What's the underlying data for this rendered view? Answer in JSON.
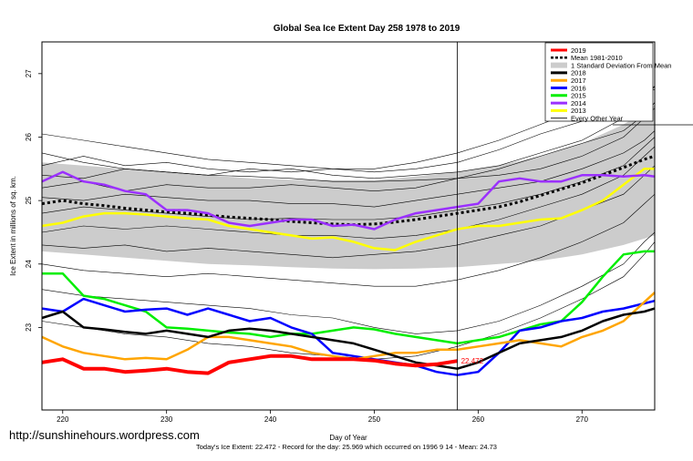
{
  "watermark": "http://sunshinehours.wordpress.com",
  "stats_line": "Today's Ice Extent: 22.472  - Record for the day: 25.969 which occurred on 1996 9 14  - Mean: 24.73",
  "chart_data": {
    "type": "line",
    "title": "Global Sea Ice Extent Day 258 1978 to 2019",
    "xlabel": "Day of Year",
    "ylabel": "Ice Extent in millions of sq. km.",
    "xlim": [
      218,
      277
    ],
    "ylim": [
      21.7,
      27.5
    ],
    "x_ticks": [
      220,
      230,
      240,
      250,
      260,
      270
    ],
    "y_ticks": [
      23,
      24,
      25,
      26,
      27
    ],
    "x_tick_labels": [
      "220",
      "230",
      "240",
      "250",
      "260",
      "270"
    ],
    "y_tick_labels": [
      "23",
      "24",
      "25",
      "26",
      "27"
    ],
    "current_day": 258,
    "current_value_label": "22.472",
    "grid": false,
    "legend_position": "top-right",
    "colors": {
      "2019": "#ff0000",
      "mean": "#000000",
      "band": "#cccccc",
      "2018": "#000000",
      "2017": "#ffa500",
      "2016": "#0000ff",
      "2015": "#00ee00",
      "2014": "#9b30ff",
      "2013": "#ffff00",
      "other": "#000000"
    },
    "legend": [
      {
        "label": "2019",
        "key": "2019",
        "style": "thick"
      },
      {
        "label": "Mean 1981-2010",
        "key": "mean",
        "style": "dotted"
      },
      {
        "label": "1 Standard Deviation From Mean",
        "key": "band",
        "style": "box"
      },
      {
        "label": "2018",
        "key": "2018",
        "style": "thick"
      },
      {
        "label": "2017",
        "key": "2017",
        "style": "thick"
      },
      {
        "label": "2016",
        "key": "2016",
        "style": "thick"
      },
      {
        "label": "2015",
        "key": "2015",
        "style": "thick"
      },
      {
        "label": "2014",
        "key": "2014",
        "style": "thick"
      },
      {
        "label": "2013",
        "key": "2013",
        "style": "thick"
      },
      {
        "label": "Every Other Year",
        "key": "other",
        "style": "thin"
      }
    ],
    "std_band": {
      "x": [
        218,
        222,
        226,
        230,
        234,
        238,
        242,
        246,
        250,
        254,
        258,
        262,
        266,
        270,
        274,
        277
      ],
      "upper": [
        25.6,
        25.55,
        25.5,
        25.45,
        25.4,
        25.35,
        25.33,
        25.32,
        25.32,
        25.38,
        25.45,
        25.55,
        25.7,
        25.9,
        26.2,
        26.5
      ],
      "lower": [
        24.2,
        24.15,
        24.1,
        24.05,
        24.0,
        23.98,
        23.95,
        23.93,
        23.92,
        23.93,
        23.95,
        24.0,
        24.05,
        24.15,
        24.3,
        24.45
      ]
    },
    "series": [
      {
        "name": "Mean 1981-2010",
        "key": "mean",
        "x": [
          218,
          220,
          222,
          224,
          226,
          228,
          230,
          232,
          234,
          236,
          238,
          240,
          242,
          244,
          246,
          248,
          250,
          252,
          254,
          256,
          258,
          260,
          262,
          264,
          266,
          268,
          270,
          272,
          274,
          276,
          277
        ],
        "y": [
          24.95,
          25.0,
          24.95,
          24.92,
          24.88,
          24.85,
          24.82,
          24.8,
          24.77,
          24.74,
          24.72,
          24.7,
          24.67,
          24.65,
          24.63,
          24.62,
          24.63,
          24.66,
          24.7,
          24.75,
          24.8,
          24.85,
          24.9,
          24.98,
          25.08,
          25.18,
          25.28,
          25.4,
          25.52,
          25.65,
          25.7
        ]
      },
      {
        "name": "2013",
        "key": "2013",
        "x": [
          218,
          220,
          222,
          224,
          226,
          228,
          230,
          232,
          234,
          236,
          238,
          240,
          242,
          244,
          246,
          248,
          250,
          252,
          254,
          256,
          258,
          260,
          262,
          264,
          266,
          268,
          270,
          272,
          274,
          276,
          277
        ],
        "y": [
          24.6,
          24.65,
          24.75,
          24.8,
          24.8,
          24.78,
          24.75,
          24.72,
          24.7,
          24.6,
          24.55,
          24.5,
          24.45,
          24.4,
          24.42,
          24.35,
          24.25,
          24.22,
          24.35,
          24.45,
          24.55,
          24.6,
          24.6,
          24.65,
          24.7,
          24.72,
          24.85,
          25.0,
          25.25,
          25.5,
          25.5
        ]
      },
      {
        "name": "2014",
        "key": "2014",
        "x": [
          218,
          220,
          222,
          224,
          226,
          228,
          230,
          232,
          234,
          236,
          238,
          240,
          242,
          244,
          246,
          248,
          250,
          252,
          254,
          256,
          258,
          260,
          262,
          264,
          266,
          268,
          270,
          272,
          274,
          276,
          277
        ],
        "y": [
          25.3,
          25.45,
          25.3,
          25.25,
          25.15,
          25.1,
          24.85,
          24.85,
          24.8,
          24.65,
          24.6,
          24.65,
          24.7,
          24.7,
          24.6,
          24.62,
          24.55,
          24.7,
          24.8,
          24.85,
          24.9,
          24.95,
          25.3,
          25.35,
          25.3,
          25.3,
          25.4,
          25.4,
          25.38,
          25.4,
          25.38
        ]
      },
      {
        "name": "2015",
        "key": "2015",
        "x": [
          218,
          220,
          222,
          224,
          226,
          228,
          230,
          232,
          234,
          236,
          238,
          240,
          242,
          244,
          246,
          248,
          250,
          252,
          254,
          256,
          258,
          260,
          262,
          264,
          266,
          268,
          270,
          272,
          274,
          276,
          277
        ],
        "y": [
          23.85,
          23.85,
          23.5,
          23.45,
          23.35,
          23.25,
          23.0,
          22.98,
          22.95,
          22.92,
          22.9,
          22.85,
          22.9,
          22.9,
          22.95,
          23.0,
          22.97,
          22.9,
          22.85,
          22.8,
          22.75,
          22.8,
          22.85,
          22.95,
          23.05,
          23.1,
          23.4,
          23.8,
          24.15,
          24.2,
          24.2
        ]
      },
      {
        "name": "2016",
        "key": "2016",
        "x": [
          218,
          220,
          222,
          224,
          226,
          228,
          230,
          232,
          234,
          236,
          238,
          240,
          242,
          244,
          246,
          248,
          250,
          252,
          254,
          256,
          258,
          260,
          262,
          264,
          266,
          268,
          270,
          272,
          274,
          276,
          277
        ],
        "y": [
          23.3,
          23.25,
          23.45,
          23.35,
          23.25,
          23.28,
          23.3,
          23.2,
          23.3,
          23.2,
          23.1,
          23.15,
          23.0,
          22.9,
          22.6,
          22.55,
          22.5,
          22.45,
          22.4,
          22.3,
          22.25,
          22.3,
          22.6,
          22.95,
          23.0,
          23.1,
          23.15,
          23.25,
          23.3,
          23.38,
          23.42
        ]
      },
      {
        "name": "2017",
        "key": "2017",
        "x": [
          218,
          220,
          222,
          224,
          226,
          228,
          230,
          232,
          234,
          236,
          238,
          240,
          242,
          244,
          246,
          248,
          250,
          252,
          254,
          256,
          258,
          260,
          262,
          264,
          266,
          268,
          270,
          272,
          274,
          276,
          277
        ],
        "y": [
          22.85,
          22.7,
          22.6,
          22.55,
          22.5,
          22.52,
          22.5,
          22.65,
          22.85,
          22.85,
          22.8,
          22.75,
          22.7,
          22.6,
          22.55,
          22.5,
          22.55,
          22.6,
          22.6,
          22.65,
          22.65,
          22.7,
          22.75,
          22.8,
          22.75,
          22.7,
          22.85,
          22.95,
          23.1,
          23.4,
          23.55
        ]
      },
      {
        "name": "2018",
        "key": "2018",
        "x": [
          218,
          220,
          222,
          224,
          226,
          228,
          230,
          232,
          234,
          236,
          238,
          240,
          242,
          244,
          246,
          248,
          250,
          252,
          254,
          256,
          258,
          260,
          262,
          264,
          266,
          268,
          270,
          272,
          274,
          276,
          277
        ],
        "y": [
          23.15,
          23.25,
          23.0,
          22.97,
          22.93,
          22.9,
          22.95,
          22.9,
          22.85,
          22.95,
          22.98,
          22.95,
          22.9,
          22.85,
          22.8,
          22.75,
          22.65,
          22.55,
          22.45,
          22.4,
          22.35,
          22.45,
          22.6,
          22.75,
          22.8,
          22.85,
          22.95,
          23.1,
          23.2,
          23.25,
          23.3
        ]
      },
      {
        "name": "2019",
        "key": "2019",
        "x": [
          218,
          220,
          222,
          224,
          226,
          228,
          230,
          232,
          234,
          236,
          238,
          240,
          242,
          244,
          246,
          248,
          250,
          252,
          254,
          256,
          258
        ],
        "y": [
          22.45,
          22.5,
          22.35,
          22.35,
          22.3,
          22.32,
          22.35,
          22.3,
          22.28,
          22.45,
          22.5,
          22.55,
          22.55,
          22.5,
          22.5,
          22.5,
          22.48,
          22.43,
          22.4,
          22.42,
          22.472
        ]
      }
    ],
    "background_years": [
      [
        25.75,
        25.6,
        25.5,
        25.45,
        25.4,
        25.38,
        25.35,
        25.3,
        25.3,
        25.32,
        25.35,
        25.4,
        25.5,
        25.7,
        26.0,
        26.3,
        26.55
      ],
      [
        25.55,
        25.7,
        25.55,
        25.6,
        25.5,
        25.45,
        25.5,
        25.4,
        25.35,
        25.4,
        25.45,
        25.55,
        25.75,
        25.95,
        26.3,
        26.6,
        26.8
      ],
      [
        25.4,
        25.35,
        25.5,
        25.45,
        25.4,
        25.5,
        25.45,
        25.5,
        25.45,
        25.5,
        25.6,
        25.8,
        26.05,
        26.25,
        26.5,
        26.7,
        26.75
      ],
      [
        25.2,
        25.3,
        25.15,
        25.25,
        25.2,
        25.2,
        25.25,
        25.2,
        25.15,
        25.2,
        25.35,
        25.5,
        25.7,
        25.9,
        26.1,
        26.35,
        26.45
      ],
      [
        25.05,
        25.0,
        25.1,
        25.05,
        25.0,
        25.0,
        24.95,
        24.95,
        24.9,
        25.0,
        25.1,
        25.2,
        25.3,
        25.5,
        25.75,
        25.95,
        26.1
      ],
      [
        24.8,
        24.9,
        24.85,
        24.8,
        24.75,
        24.7,
        24.72,
        24.7,
        24.7,
        24.75,
        24.85,
        24.95,
        25.1,
        25.3,
        25.55,
        25.85,
        26.0
      ],
      [
        24.5,
        24.6,
        24.55,
        24.6,
        24.55,
        24.5,
        24.45,
        24.45,
        24.4,
        24.45,
        24.55,
        24.7,
        24.9,
        25.1,
        25.4,
        25.7,
        25.85
      ],
      [
        24.3,
        24.25,
        24.3,
        24.2,
        24.25,
        24.2,
        24.15,
        24.1,
        24.15,
        24.2,
        24.3,
        24.45,
        24.6,
        24.85,
        25.1,
        25.4,
        25.55
      ],
      [
        24.0,
        23.9,
        23.85,
        23.8,
        23.85,
        23.8,
        23.75,
        23.7,
        23.65,
        23.65,
        23.75,
        23.9,
        24.1,
        24.35,
        24.65,
        24.95,
        25.1
      ],
      [
        23.6,
        23.5,
        23.45,
        23.4,
        23.35,
        23.3,
        23.2,
        23.15,
        23.0,
        22.9,
        22.95,
        23.1,
        23.35,
        23.65,
        24.0,
        24.35,
        24.5
      ],
      [
        23.1,
        23.0,
        22.9,
        22.85,
        22.75,
        22.7,
        22.6,
        22.55,
        22.5,
        22.55,
        22.7,
        22.9,
        23.15,
        23.45,
        23.8,
        24.15,
        24.35
      ],
      [
        26.05,
        25.95,
        25.85,
        25.75,
        25.65,
        25.6,
        25.55,
        25.5,
        25.5,
        25.6,
        25.75,
        25.95,
        26.2,
        26.45,
        26.65,
        26.75,
        26.8
      ]
    ],
    "background_x": [
      218,
      222,
      226,
      230,
      234,
      238,
      242,
      246,
      250,
      254,
      258,
      262,
      266,
      270,
      274,
      276,
      277
    ]
  }
}
